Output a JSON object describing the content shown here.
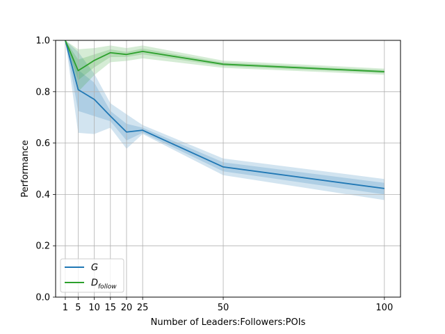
{
  "chart_data": {
    "type": "line",
    "title": "",
    "xlabel": "Number of Leaders:Followers:POIs",
    "ylabel": "Performance",
    "xlim": [
      -2,
      105
    ],
    "ylim": [
      0,
      1.0
    ],
    "x": [
      1,
      5,
      10,
      15,
      20,
      25,
      50,
      100
    ],
    "xticks": [
      1,
      5,
      10,
      15,
      20,
      25,
      50,
      100
    ],
    "yticks": [
      0.0,
      0.2,
      0.4,
      0.6,
      0.8,
      1.0
    ],
    "ytick_labels": [
      "0.0",
      "0.2",
      "0.4",
      "0.6",
      "0.8",
      "1.0"
    ],
    "grid": true,
    "legend": "lower-left",
    "series": [
      {
        "name": "G",
        "legend_main": "G",
        "legend_sub": "",
        "color": "#1f77b4",
        "values": [
          1.0,
          0.808,
          0.77,
          0.705,
          0.643,
          0.65,
          0.507,
          0.423
        ],
        "inner_low": [
          1.0,
          0.725,
          0.705,
          0.685,
          0.61,
          0.64,
          0.49,
          0.4
        ],
        "inner_high": [
          1.0,
          0.885,
          0.835,
          0.725,
          0.675,
          0.66,
          0.525,
          0.445
        ],
        "outer_low": [
          1.0,
          0.64,
          0.635,
          0.66,
          0.578,
          0.635,
          0.475,
          0.378
        ],
        "outer_high": [
          1.0,
          0.955,
          0.87,
          0.755,
          0.712,
          0.67,
          0.54,
          0.46
        ]
      },
      {
        "name": "D_follow",
        "legend_main": "D",
        "legend_sub": "follow",
        "color": "#2ca02c",
        "values": [
          1.0,
          0.882,
          0.922,
          0.952,
          0.945,
          0.957,
          0.907,
          0.878
        ],
        "inner_low": [
          1.0,
          0.845,
          0.895,
          0.935,
          0.935,
          0.945,
          0.9,
          0.872
        ],
        "inner_high": [
          1.0,
          0.925,
          0.945,
          0.965,
          0.955,
          0.968,
          0.914,
          0.884
        ],
        "outer_low": [
          1.0,
          0.8,
          0.865,
          0.915,
          0.92,
          0.93,
          0.893,
          0.866
        ],
        "outer_high": [
          1.0,
          0.965,
          0.97,
          0.98,
          0.97,
          0.98,
          0.921,
          0.89
        ]
      }
    ]
  }
}
